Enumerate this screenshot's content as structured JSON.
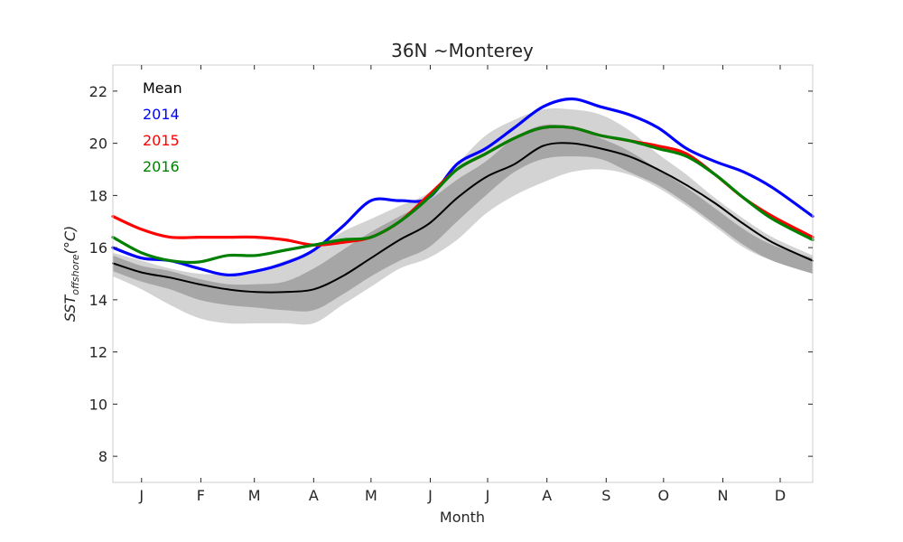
{
  "chart_data": {
    "type": "line",
    "title": "36N ~Monterey",
    "xlabel": "Month",
    "ylabel_main": "SST",
    "ylabel_sub": "offshore",
    "ylabel_unit": "(°C)",
    "xlim": [
      0,
      366
    ],
    "ylim": [
      7,
      23
    ],
    "yticks": [
      8,
      10,
      12,
      14,
      16,
      18,
      20,
      22
    ],
    "month_ticks": [
      {
        "label": "J",
        "day": 15
      },
      {
        "label": "F",
        "day": 46
      },
      {
        "label": "M",
        "day": 74
      },
      {
        "label": "A",
        "day": 105
      },
      {
        "label": "M",
        "day": 135
      },
      {
        "label": "J",
        "day": 166
      },
      {
        "label": "J",
        "day": 196
      },
      {
        "label": "A",
        "day": 227
      },
      {
        "label": "S",
        "day": 258
      },
      {
        "label": "O",
        "day": 288
      },
      {
        "label": "N",
        "day": 319
      },
      {
        "label": "D",
        "day": 349
      }
    ],
    "grid": false,
    "legend_position": "top-left",
    "legend": [
      {
        "label": "Mean",
        "color": "#000000"
      },
      {
        "label": "2014",
        "color": "#0000ff"
      },
      {
        "label": "2015",
        "color": "#ff0000"
      },
      {
        "label": "2016",
        "color": "#008000"
      }
    ],
    "x": [
      0,
      15,
      30,
      45,
      60,
      75,
      90,
      105,
      120,
      135,
      150,
      165,
      180,
      195,
      210,
      225,
      240,
      255,
      270,
      285,
      300,
      315,
      330,
      345,
      366
    ],
    "bands": [
      {
        "name": "outer",
        "color": "#d3d3d3",
        "lower": [
          14.9,
          14.4,
          13.8,
          13.3,
          13.1,
          13.1,
          13.1,
          13.1,
          13.8,
          14.5,
          15.2,
          15.6,
          16.3,
          17.3,
          18.0,
          18.5,
          18.9,
          19.0,
          18.8,
          18.3,
          17.6,
          16.8,
          16.0,
          15.5,
          15.0
        ],
        "upper": [
          15.8,
          15.5,
          15.2,
          15.0,
          15.0,
          15.1,
          15.5,
          15.9,
          16.6,
          17.1,
          17.6,
          18.1,
          19.2,
          20.3,
          20.9,
          21.3,
          21.3,
          21.1,
          20.5,
          19.6,
          18.8,
          17.9,
          17.1,
          16.4,
          15.7
        ]
      },
      {
        "name": "inner",
        "color": "#a6a6a6",
        "lower": [
          15.1,
          14.7,
          14.4,
          14.0,
          13.8,
          13.7,
          13.6,
          13.6,
          14.2,
          14.9,
          15.5,
          16.0,
          17.0,
          18.0,
          18.9,
          19.4,
          19.5,
          19.4,
          18.9,
          18.4,
          17.7,
          16.9,
          16.1,
          15.5,
          15.0
        ],
        "upper": [
          15.7,
          15.3,
          15.1,
          14.8,
          14.6,
          14.6,
          14.7,
          15.2,
          15.9,
          16.6,
          17.2,
          17.8,
          18.6,
          19.3,
          20.2,
          20.7,
          20.6,
          20.2,
          19.7,
          19.0,
          18.3,
          17.5,
          16.7,
          16.1,
          15.6
        ]
      }
    ],
    "series": [
      {
        "name": "Mean",
        "color": "#000000",
        "values": [
          15.4,
          15.05,
          14.85,
          14.6,
          14.4,
          14.3,
          14.3,
          14.4,
          14.9,
          15.6,
          16.3,
          16.9,
          17.9,
          18.7,
          19.2,
          19.9,
          20.0,
          19.8,
          19.5,
          19.0,
          18.4,
          17.7,
          16.9,
          16.2,
          15.5
        ]
      },
      {
        "name": "2014",
        "color": "#0000ff",
        "values": [
          16.0,
          15.6,
          15.5,
          15.2,
          14.95,
          15.1,
          15.4,
          15.9,
          16.8,
          17.8,
          17.8,
          17.9,
          19.2,
          19.8,
          20.6,
          21.4,
          21.7,
          21.4,
          21.1,
          20.6,
          19.8,
          19.3,
          18.9,
          18.3,
          17.2
        ]
      },
      {
        "name": "2015",
        "color": "#ff0000",
        "values": [
          17.2,
          16.7,
          16.4,
          16.4,
          16.4,
          16.4,
          16.3,
          16.1,
          16.2,
          16.4,
          17.0,
          18.0,
          19.0,
          19.6,
          20.2,
          20.6,
          20.6,
          20.3,
          20.1,
          19.9,
          19.6,
          18.8,
          17.9,
          17.2,
          16.4
        ]
      },
      {
        "name": "2016",
        "color": "#008000",
        "values": [
          16.4,
          15.8,
          15.5,
          15.45,
          15.7,
          15.7,
          15.9,
          16.1,
          16.3,
          16.4,
          17.0,
          17.9,
          19.0,
          19.6,
          20.2,
          20.6,
          20.6,
          20.3,
          20.1,
          19.8,
          19.5,
          18.8,
          17.9,
          17.1,
          16.3
        ]
      }
    ]
  }
}
